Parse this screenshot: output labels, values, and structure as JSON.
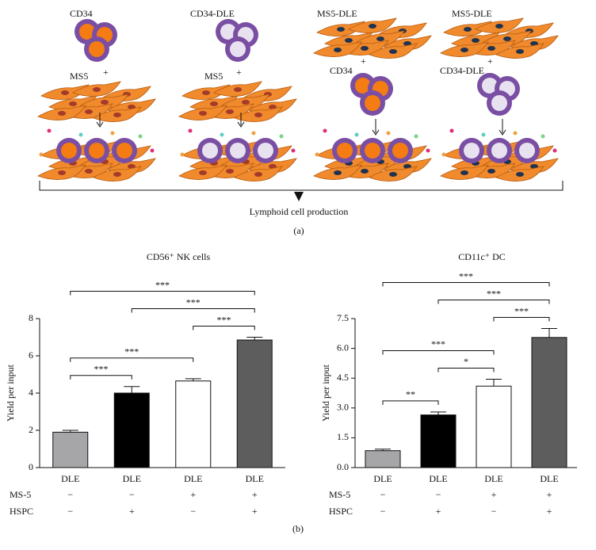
{
  "figure": {
    "panel_a": {
      "top_labels": [
        "CD34",
        "CD34-DLE",
        "MS5-DLE",
        "MS5-DLE"
      ],
      "middle_labels": [
        "MS5",
        "MS5",
        "CD34",
        "CD34-DLE"
      ],
      "plus": [
        "+",
        "+",
        "+",
        "+"
      ],
      "caption": "Lymphoid cell production",
      "label": "(a)"
    },
    "panel_b_label": "(b)"
  },
  "chart_data": [
    {
      "type": "bar",
      "title": "CD56⁺ NK cells",
      "y_label": "Yield per input",
      "categories": [
        "DLE",
        "DLE",
        "DLE",
        "DLE"
      ],
      "values": [
        1.9,
        4.0,
        4.65,
        6.85
      ],
      "errors": [
        0.1,
        0.35,
        0.12,
        0.15
      ],
      "colors": [
        "#a6a6a9",
        "#000000",
        "#ffffff",
        "#5d5d5d"
      ],
      "ylim": [
        0,
        8
      ],
      "yticks": [
        0,
        2,
        4,
        6,
        8
      ],
      "rows": [
        {
          "name": "MS-5",
          "values": [
            "−",
            "−",
            "+",
            "+"
          ]
        },
        {
          "name": "HSPC",
          "values": [
            "−",
            "+",
            "−",
            "+"
          ]
        }
      ],
      "brackets": [
        {
          "from": 0,
          "to": 1,
          "label": "***"
        },
        {
          "from": 0,
          "to": 2,
          "label": "***"
        },
        {
          "from": 2,
          "to": 3,
          "label": "***"
        },
        {
          "from": 1,
          "to": 3,
          "label": "***"
        },
        {
          "from": 0,
          "to": 3,
          "label": "***"
        }
      ]
    },
    {
      "type": "bar",
      "title": "CD11c⁺ DC",
      "y_label": "Yield per input",
      "categories": [
        "DLE",
        "DLE",
        "DLE",
        "DLE"
      ],
      "values": [
        0.85,
        2.65,
        4.1,
        6.55
      ],
      "errors": [
        0.08,
        0.15,
        0.35,
        0.45
      ],
      "colors": [
        "#a6a6a9",
        "#000000",
        "#ffffff",
        "#5d5d5d"
      ],
      "ylim": [
        0,
        7.5
      ],
      "yticks": [
        {
          "value": 0,
          "label": "0.0"
        },
        1.5,
        {
          "value": 3,
          "label": "3.0"
        },
        4.5,
        {
          "value": 6,
          "label": "6.0"
        },
        7.5
      ],
      "rows": [
        {
          "name": "MS-5",
          "values": [
            "−",
            "−",
            "+",
            "+"
          ]
        },
        {
          "name": "HSPC",
          "values": [
            "−",
            "+",
            "−",
            "+"
          ]
        }
      ],
      "brackets": [
        {
          "from": 0,
          "to": 1,
          "label": "**"
        },
        {
          "from": 1,
          "to": 2,
          "label": "*"
        },
        {
          "from": 0,
          "to": 2,
          "label": "***"
        },
        {
          "from": 2,
          "to": 3,
          "label": "***"
        },
        {
          "from": 1,
          "to": 3,
          "label": "***"
        },
        {
          "from": 0,
          "to": 3,
          "label": "***"
        }
      ]
    }
  ]
}
